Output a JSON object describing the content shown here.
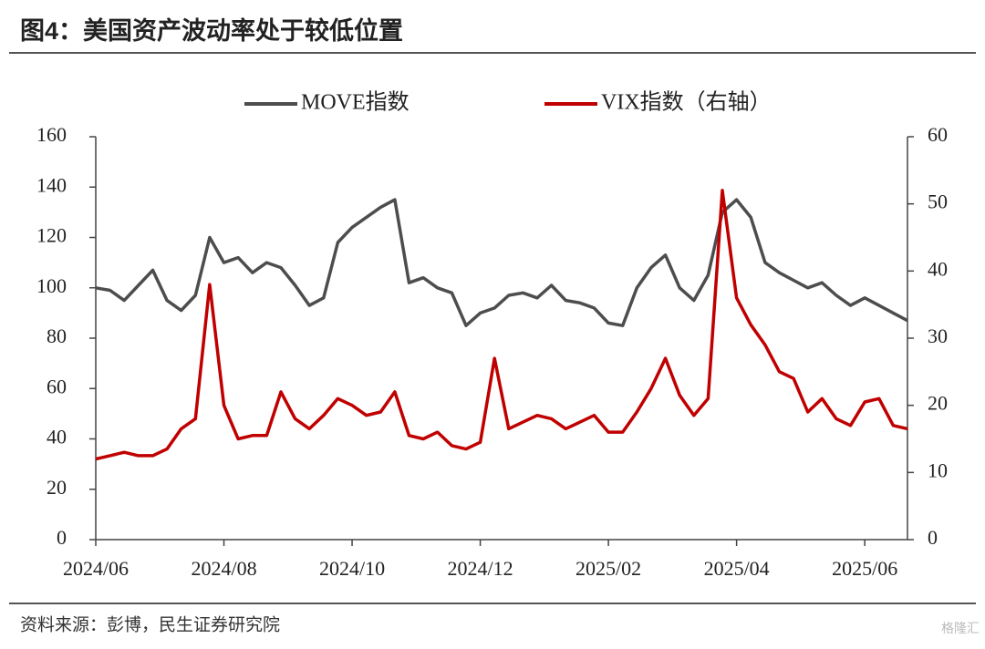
{
  "chart_data": {
    "type": "line",
    "title": "图4：美国资产波动率处于较低位置",
    "source": "资料来源：彭博，民生证券研究院",
    "watermark": "格隆汇",
    "categories": [
      "2024/06",
      null,
      null,
      null,
      null,
      null,
      null,
      null,
      null,
      "2024/08",
      null,
      null,
      null,
      null,
      null,
      null,
      null,
      null,
      "2024/10",
      null,
      null,
      null,
      null,
      null,
      null,
      null,
      null,
      "2024/12",
      null,
      null,
      null,
      null,
      null,
      null,
      null,
      null,
      "2025/02",
      null,
      null,
      null,
      null,
      null,
      null,
      null,
      null,
      "2025/04",
      null,
      null,
      null,
      null,
      null,
      null,
      null,
      null,
      "2025/06",
      null,
      null,
      null
    ],
    "series": [
      {
        "name": "MOVE指数",
        "color": "#4d4d4d",
        "values": [
          100,
          99,
          95,
          101,
          107,
          95,
          91,
          97,
          120,
          110,
          112,
          106,
          110,
          108,
          101,
          93,
          96,
          118,
          124,
          128,
          132,
          135,
          102,
          104,
          100,
          98,
          85,
          90,
          92,
          97,
          98,
          96,
          101,
          95,
          94,
          92,
          86,
          85,
          100,
          108,
          113,
          100,
          95,
          105,
          130,
          135,
          128,
          110,
          106,
          103,
          100,
          102,
          97,
          93,
          96,
          93,
          90,
          87
        ]
      },
      {
        "name": "VIX指数（右轴）",
        "color": "#c00000",
        "axis": "y2",
        "values": [
          12,
          12.5,
          13,
          12.5,
          12.5,
          13.5,
          16.5,
          18,
          38,
          20,
          15,
          15.5,
          15.5,
          22,
          18,
          16.5,
          18.5,
          21,
          20,
          18.5,
          19,
          22,
          15.5,
          15,
          16,
          14,
          13.5,
          14.5,
          27,
          16.5,
          17.5,
          18.5,
          18,
          16.5,
          17.5,
          18.5,
          16,
          16,
          19,
          22.5,
          27,
          21.5,
          18.5,
          21,
          52,
          36,
          32,
          29,
          25,
          24,
          19,
          21,
          18,
          17,
          20.5,
          21,
          17,
          16.5
        ]
      }
    ],
    "ylim": [
      0,
      160
    ],
    "yticks": [
      0,
      20,
      40,
      60,
      80,
      100,
      120,
      140,
      160
    ],
    "y2lim": [
      0,
      60
    ],
    "y2ticks": [
      0,
      10,
      20,
      30,
      40,
      50,
      60
    ],
    "legend": "top"
  }
}
